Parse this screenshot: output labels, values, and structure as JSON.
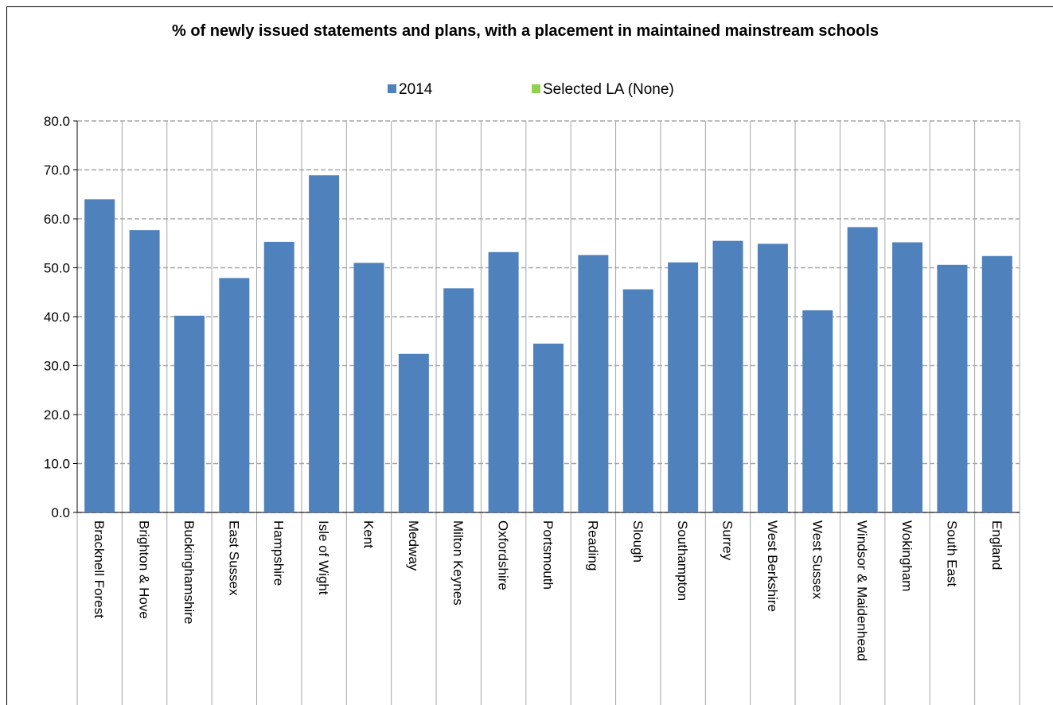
{
  "chart_data": {
    "type": "bar",
    "title": "% of newly issued statements and plans, with a placement in maintained mainstream schools",
    "categories": [
      "Bracknell Forest",
      "Brighton & Hove",
      "Buckinghamshire",
      "East Sussex",
      "Hampshire",
      "Isle of Wight",
      "Kent",
      "Medway",
      "Milton Keynes",
      "Oxfordshire",
      "Portsmouth",
      "Reading",
      "Slough",
      "Southampton",
      "Surrey",
      "West Berkshire",
      "West Sussex",
      "Windsor & Maidenhead",
      "Wokingham",
      "South East",
      "England"
    ],
    "series": [
      {
        "name": "2014",
        "color": "#4f81bd",
        "values": [
          64.0,
          57.7,
          40.2,
          47.9,
          55.3,
          68.9,
          51.0,
          32.4,
          45.8,
          53.2,
          34.5,
          52.6,
          45.6,
          51.1,
          55.5,
          54.9,
          41.3,
          58.3,
          55.2,
          50.6,
          52.4
        ]
      },
      {
        "name": "Selected LA (None)",
        "color": "#92d050",
        "values": [
          null,
          null,
          null,
          null,
          null,
          null,
          null,
          null,
          null,
          null,
          null,
          null,
          null,
          null,
          null,
          null,
          null,
          null,
          null,
          null,
          null
        ]
      }
    ],
    "ylim": [
      0,
      80
    ],
    "yticks": [
      {
        "value": 0,
        "label": "0.0"
      },
      {
        "value": 10,
        "label": "10.0"
      },
      {
        "value": 20,
        "label": "20.0"
      },
      {
        "value": 30,
        "label": "30.0"
      },
      {
        "value": 40,
        "label": "40.0"
      },
      {
        "value": 50,
        "label": "50.0"
      },
      {
        "value": 60,
        "label": "60.0"
      },
      {
        "value": 70,
        "label": "70.0"
      },
      {
        "value": 80,
        "label": "80.0"
      }
    ],
    "grid": true,
    "legend": "top"
  }
}
